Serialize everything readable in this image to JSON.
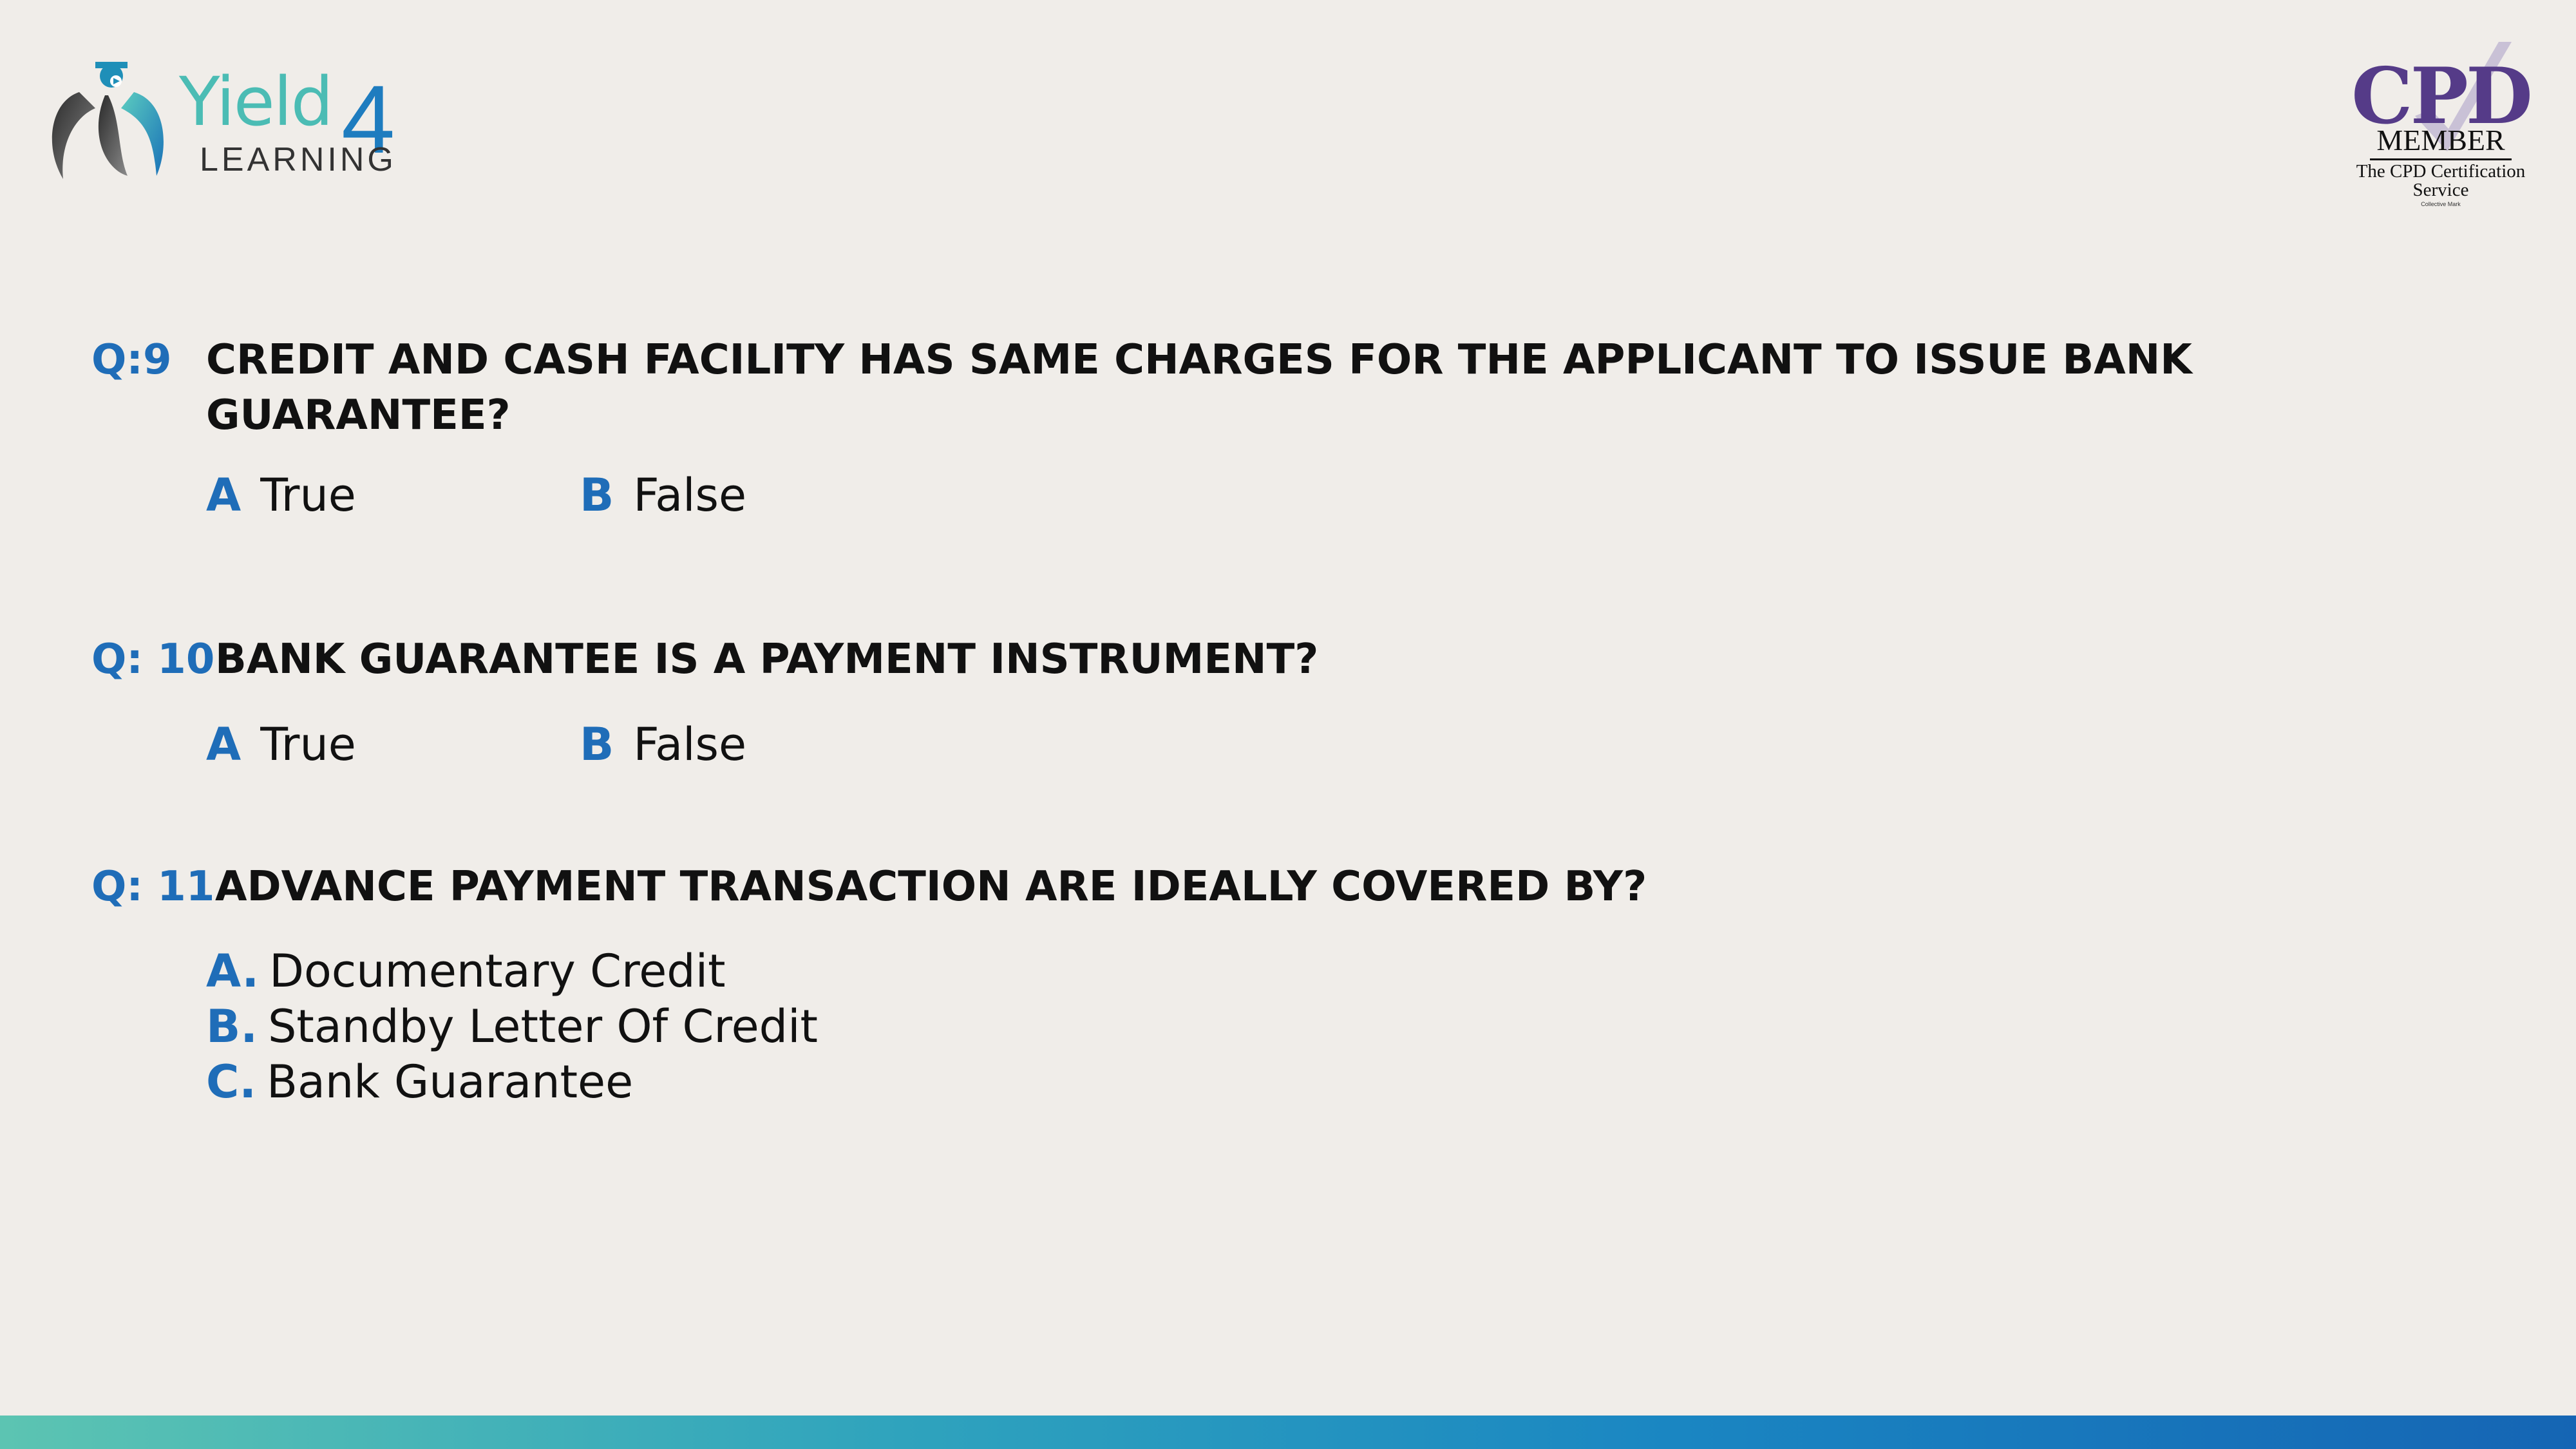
{
  "logo": {
    "brand_word": "Yield",
    "brand_digit": "4",
    "sub": "LEARNING"
  },
  "badge": {
    "title": "CPD",
    "member": "MEMBER",
    "service_line1": "The CPD Certification",
    "service_line2": "Service",
    "mark": "Collective Mark"
  },
  "questions": [
    {
      "number": "Q:9",
      "text_line1": "CREDIT AND CASH FACILITY HAS SAME CHARGES FOR THE APPLICANT TO ISSUE BANK",
      "text_line2": "GUARANTEE?",
      "options": [
        {
          "letter": "A",
          "text": "True"
        },
        {
          "letter": "B",
          "text": "False"
        }
      ]
    },
    {
      "number": "Q: 10",
      "text_line1": "BANK GUARANTEE IS A PAYMENT INSTRUMENT?",
      "options": [
        {
          "letter": "A",
          "text": "True"
        },
        {
          "letter": "B",
          "text": "False"
        }
      ]
    },
    {
      "number": "Q: 11",
      "text_line1": "ADVANCE PAYMENT TRANSACTION ARE IDEALLY COVERED BY?",
      "options": [
        {
          "letter": "A.",
          "text": "Documentary Credit"
        },
        {
          "letter": "B.",
          "text": "Standby Letter Of Credit"
        },
        {
          "letter": "C.",
          "text": "Bank Guarantee"
        }
      ]
    }
  ],
  "colors": {
    "accent": "#1f6db8",
    "background": "#f0ede9",
    "brand_teal": "#4bbcb4",
    "cpd_purple": "#553b88"
  }
}
